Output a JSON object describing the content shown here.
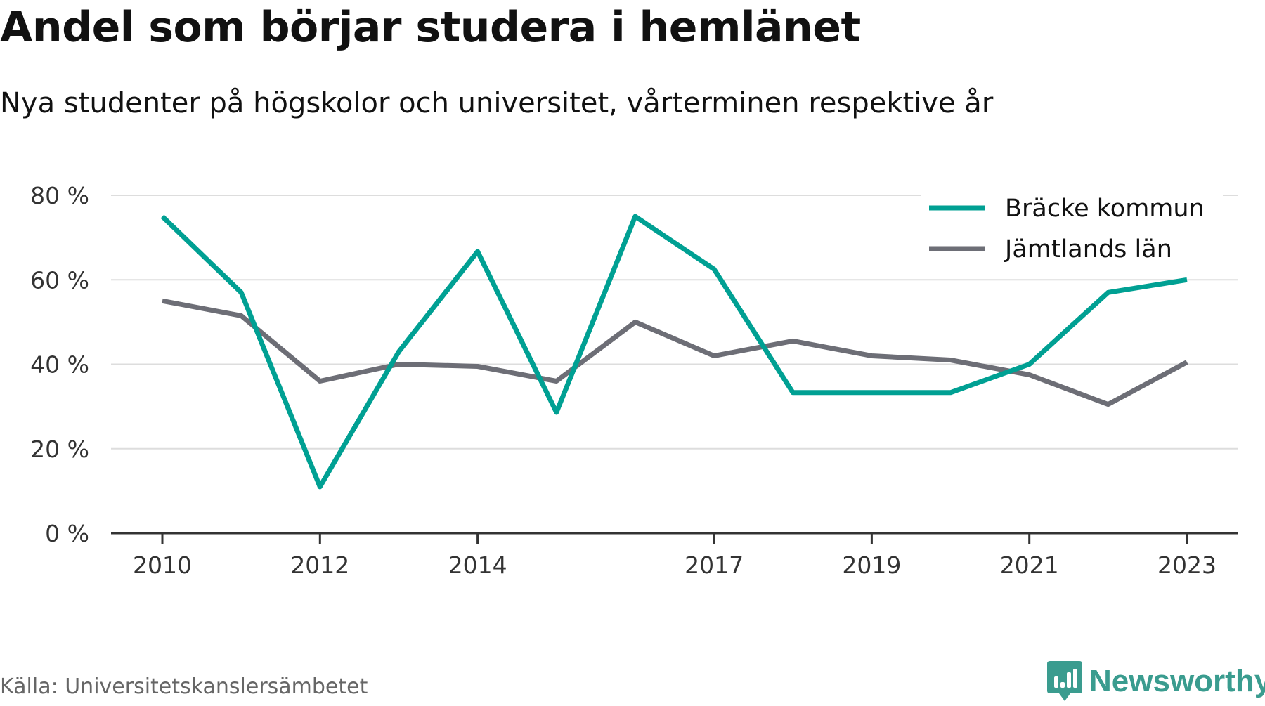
{
  "title": "Andel som börjar studera i hemlänet",
  "subtitle": "Nya studenter på högskolor och universitet, vårterminen respektive år",
  "source": "Källa: Universitetskanslersämbetet",
  "brand": {
    "name": "Newsworthy",
    "icon": "newsworthy-bar-chart-icon",
    "color": "#3a9c8f"
  },
  "chart_data": {
    "type": "line",
    "x": [
      2010,
      2011,
      2012,
      2013,
      2014,
      2015,
      2016,
      2017,
      2018,
      2019,
      2020,
      2021,
      2022,
      2023
    ],
    "x_tick_labels": [
      "2010",
      "2012",
      "2014",
      "2017",
      "2019",
      "2021",
      "2023"
    ],
    "y_tick_values": [
      0,
      20,
      40,
      60,
      80
    ],
    "y_tick_labels": [
      "0 %",
      "20 %",
      "40 %",
      "60 %",
      "80 %"
    ],
    "ylim": [
      0,
      80
    ],
    "xlim": [
      2010,
      2023
    ],
    "grid": true,
    "legend_position": "top-right",
    "series": [
      {
        "name": "Bräcke kommun",
        "color": "#00a093",
        "values": [
          75,
          57,
          11,
          43,
          66.7,
          28.6,
          75,
          62.5,
          33.3,
          33.3,
          33.3,
          40,
          57,
          60
        ]
      },
      {
        "name": "Jämtlands län",
        "color": "#6d6e76",
        "values": [
          55,
          51.5,
          36,
          40,
          39.5,
          36,
          50,
          42,
          45.5,
          42,
          41,
          37.5,
          30.5,
          40.5
        ]
      }
    ]
  }
}
